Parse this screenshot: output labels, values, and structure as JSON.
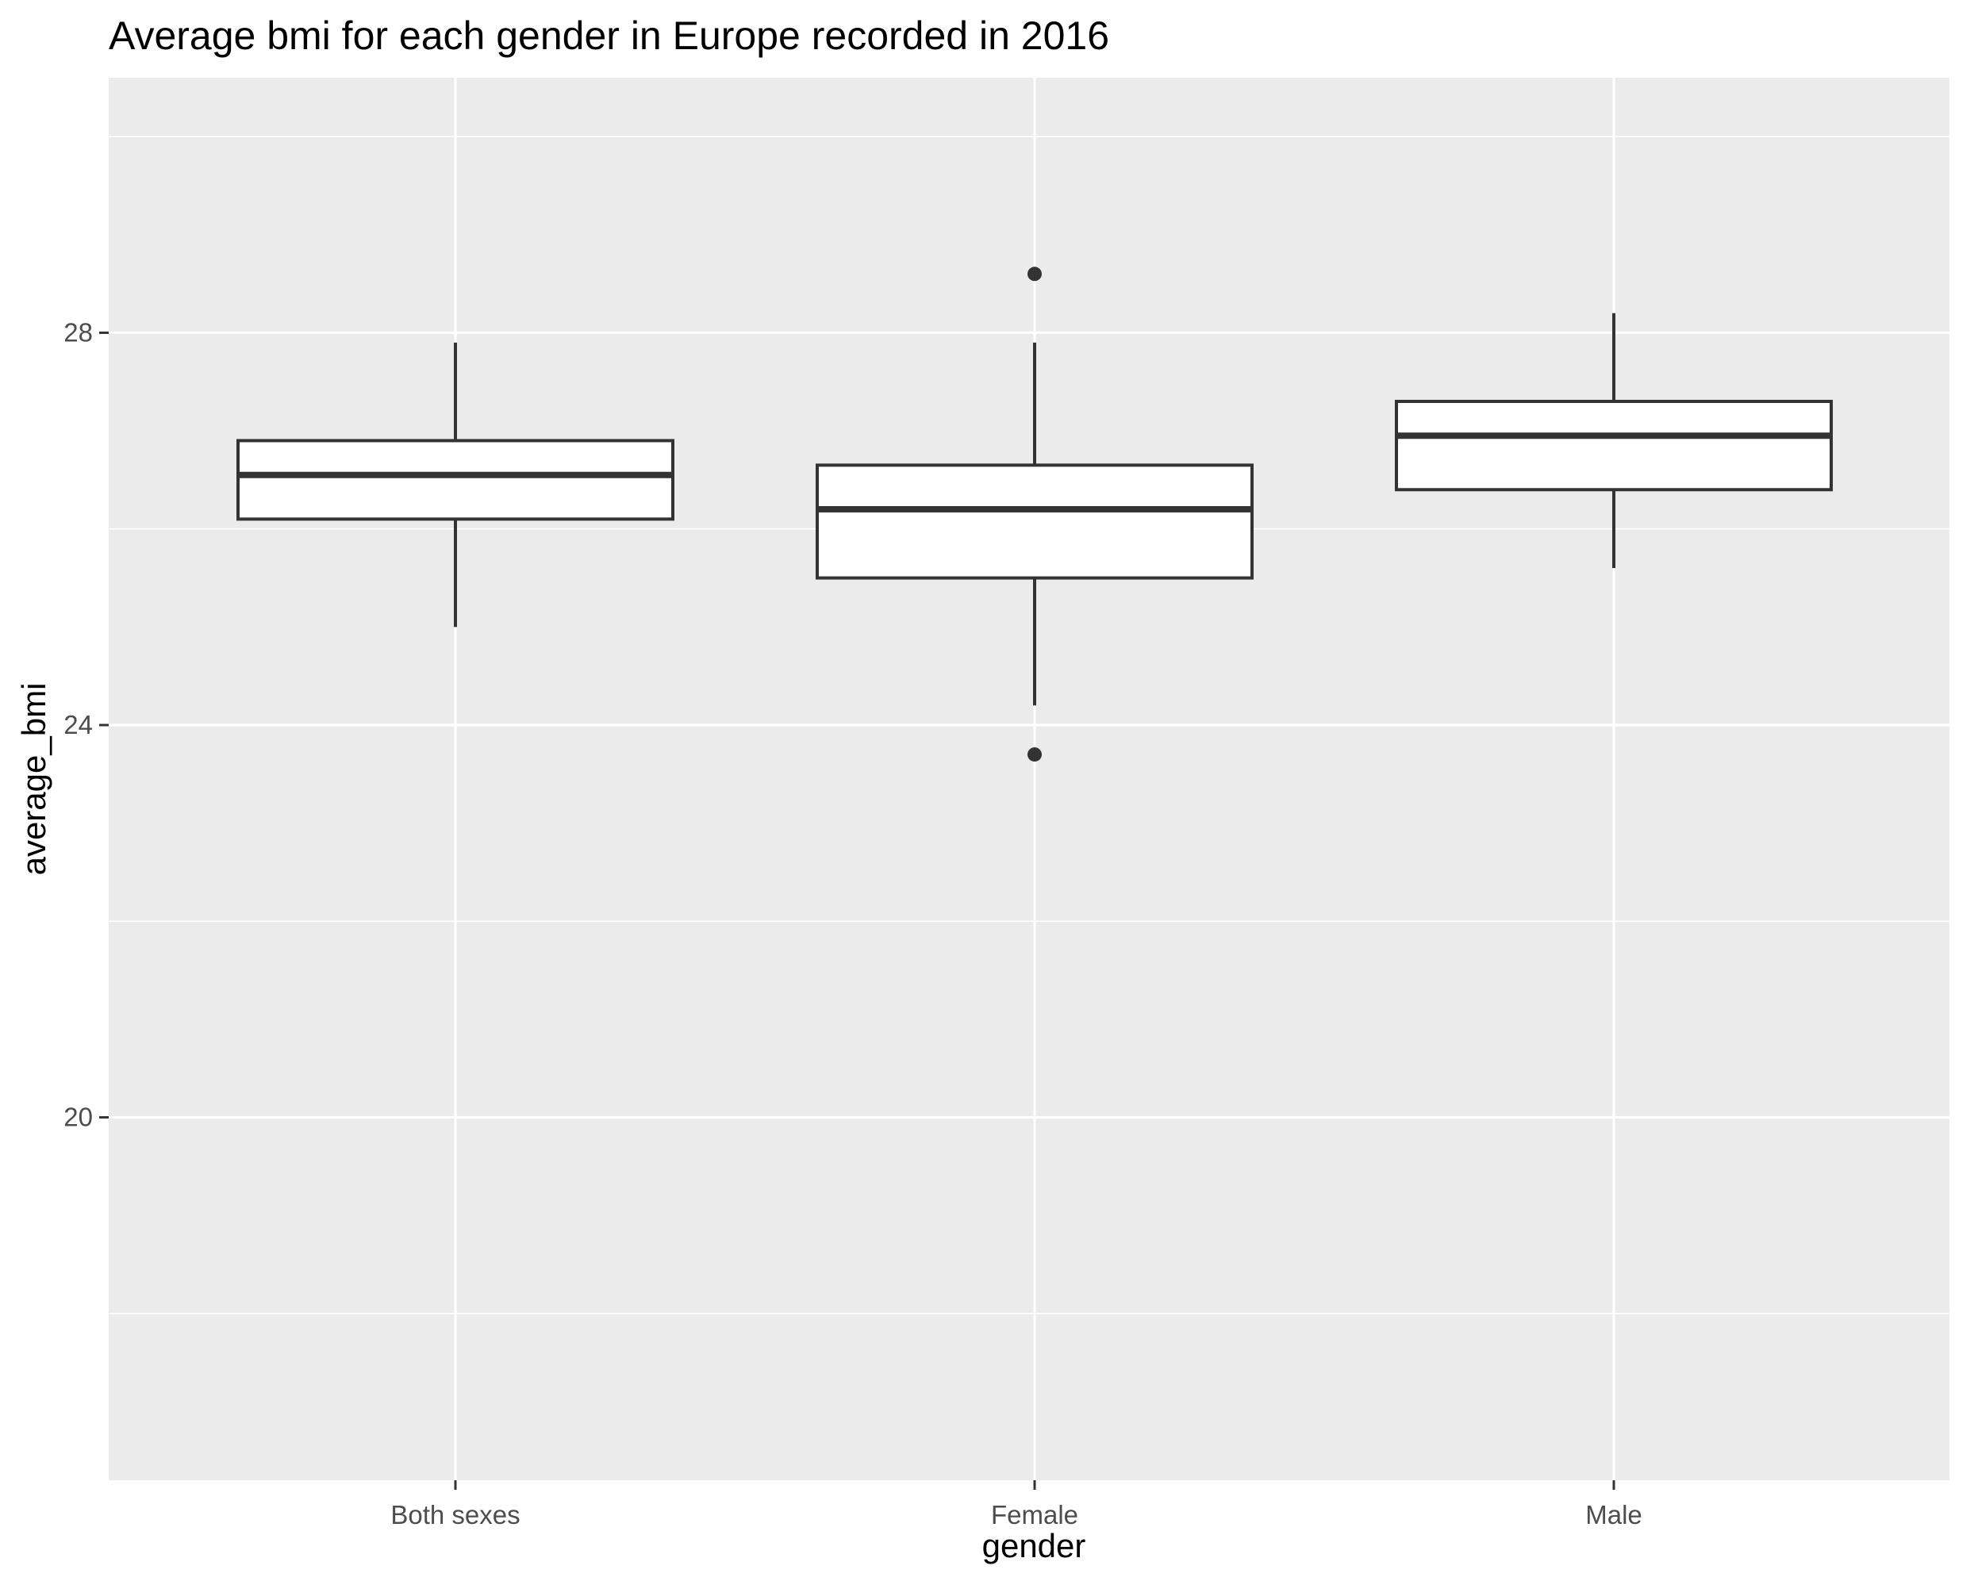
{
  "chart_data": {
    "type": "boxplot",
    "title": "Average bmi for each gender in Europe recorded in 2016",
    "xlabel": "gender",
    "ylabel": "average_bmi",
    "categories": [
      "Both sexes",
      "Female",
      "Male"
    ],
    "ylim": [
      16.3,
      30.6
    ],
    "y_ticks": [
      20,
      24,
      28
    ],
    "grid": true,
    "legend": "none",
    "boxes": [
      {
        "category": "Both sexes",
        "whisker_low": 25.0,
        "q1": 26.1,
        "median": 26.55,
        "q3": 26.9,
        "whisker_high": 27.9,
        "outliers": []
      },
      {
        "category": "Female",
        "whisker_low": 24.2,
        "q1": 25.5,
        "median": 26.2,
        "q3": 26.65,
        "whisker_high": 27.9,
        "outliers": [
          28.6,
          23.7
        ]
      },
      {
        "category": "Male",
        "whisker_low": 25.6,
        "q1": 26.4,
        "median": 26.95,
        "q3": 27.3,
        "whisker_high": 28.2,
        "outliers": []
      }
    ],
    "colors": {
      "panel_background": "#ebebeb",
      "grid": "#ffffff",
      "box_fill": "#ffffff",
      "box_stroke": "#333333",
      "outlier": "#333333",
      "tick_text": "#4d4d4d",
      "tick_mark": "#333333"
    }
  }
}
